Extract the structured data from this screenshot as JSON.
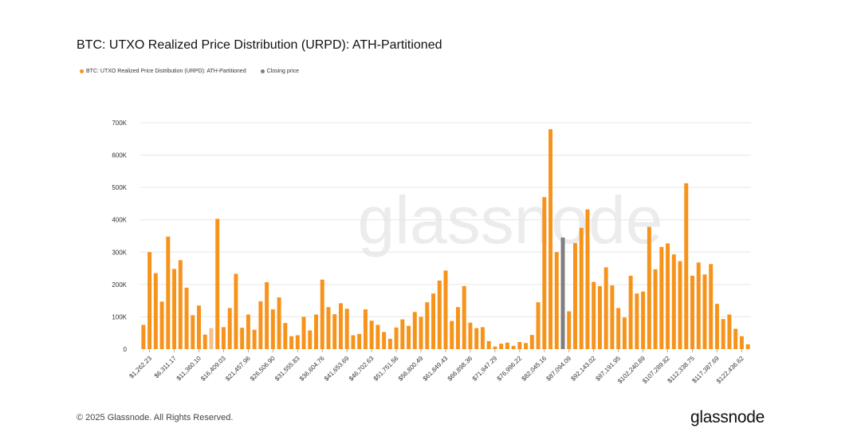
{
  "header": {
    "title": "BTC: UTXO Realized Price Distribution (URPD): ATH-Partitioned"
  },
  "footer": {
    "copyright": "© 2025 Glassnode. All Rights Reserved.",
    "brand": "glassnode"
  },
  "watermark": "glassnode",
  "colors": {
    "bar": "#f7931a",
    "closing": "#7f7f7f",
    "grid": "#e6e6e6",
    "highlight": "#f5c08a"
  },
  "chart_data": {
    "type": "bar",
    "title": "BTC: UTXO Realized Price Distribution (URPD): ATH-Partitioned",
    "xlabel": "",
    "ylabel": "",
    "ylim": [
      0,
      700000
    ],
    "yticks": [
      0,
      100000,
      200000,
      300000,
      400000,
      500000,
      600000,
      700000
    ],
    "ytick_labels": [
      "0",
      "100K",
      "200K",
      "300K",
      "400K",
      "500K",
      "600K",
      "700K"
    ],
    "legend": [
      {
        "name": "BTC: UTXO Realized Price Distribution (URPD): ATH-Partitioned",
        "color": "#f7931a"
      },
      {
        "name": "Closing price",
        "color": "#7f7f7f"
      }
    ],
    "x_tick_labels": [
      {
        "index": 1,
        "label": "$1,262.23"
      },
      {
        "index": 5,
        "label": "$6,311.17"
      },
      {
        "index": 9,
        "label": "$11,360.10"
      },
      {
        "index": 13,
        "label": "$16,409.03"
      },
      {
        "index": 17,
        "label": "$21,457.96"
      },
      {
        "index": 21,
        "label": "$26,506.90"
      },
      {
        "index": 25,
        "label": "$31,555.83"
      },
      {
        "index": 29,
        "label": "$36,604.76"
      },
      {
        "index": 33,
        "label": "$41,653.69"
      },
      {
        "index": 37,
        "label": "$46,702.63"
      },
      {
        "index": 41,
        "label": "$51,751.56"
      },
      {
        "index": 45,
        "label": "$56,800.49"
      },
      {
        "index": 49,
        "label": "$61,849.43"
      },
      {
        "index": 53,
        "label": "$66,898.36"
      },
      {
        "index": 57,
        "label": "$71,947.29"
      },
      {
        "index": 61,
        "label": "$76,996.22"
      },
      {
        "index": 65,
        "label": "$82,045.16"
      },
      {
        "index": 69,
        "label": "$87,094.09"
      },
      {
        "index": 73,
        "label": "$92,143.02"
      },
      {
        "index": 77,
        "label": "$97,191.95"
      },
      {
        "index": 81,
        "label": "$102,240.89"
      },
      {
        "index": 85,
        "label": "$107,289.82"
      },
      {
        "index": 89,
        "label": "$112,338.75"
      },
      {
        "index": 93,
        "label": "$117,387.69"
      },
      {
        "index": 97,
        "label": "$122,436.62"
      }
    ],
    "closing_price_index": 68,
    "highlight_index": 11,
    "values": [
      75000,
      300000,
      235000,
      147000,
      348000,
      248000,
      275000,
      190000,
      105000,
      135000,
      45000,
      65000,
      403000,
      68000,
      127000,
      233000,
      66000,
      107000,
      60000,
      148000,
      207000,
      123000,
      160000,
      81000,
      40000,
      43000,
      100000,
      58000,
      107000,
      215000,
      130000,
      108000,
      142000,
      125000,
      43000,
      47000,
      123000,
      88000,
      75000,
      53000,
      32000,
      67000,
      92000,
      72000,
      115000,
      100000,
      145000,
      172000,
      212000,
      243000,
      87000,
      130000,
      195000,
      82000,
      65000,
      68000,
      25000,
      8000,
      17000,
      20000,
      10000,
      22000,
      19000,
      44000,
      145000,
      470000,
      680000,
      300000,
      345000,
      117000,
      328000,
      375000,
      432000,
      208000,
      195000,
      253000,
      197000,
      127000,
      98000,
      227000,
      172000,
      178000,
      378000,
      247000,
      316000,
      327000,
      293000,
      272000,
      513000,
      227000,
      268000,
      231000,
      263000,
      140000,
      93000,
      107000,
      63000,
      40000,
      15000
    ]
  }
}
